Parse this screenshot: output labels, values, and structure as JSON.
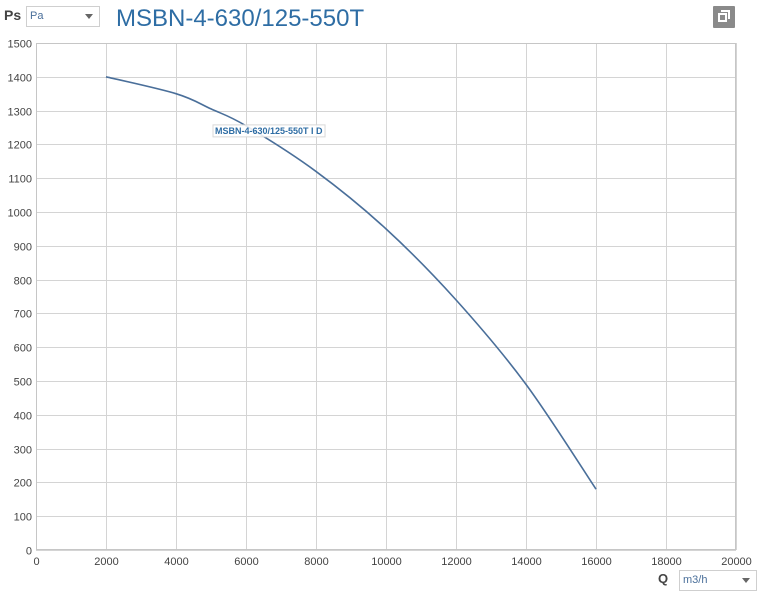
{
  "header": {
    "y_axis_symbol": "Ps",
    "title": "MSBN-4-630/125-550T"
  },
  "y_unit_select": {
    "value": "Pa"
  },
  "x_axis": {
    "symbol": "Q"
  },
  "x_unit_select": {
    "value": "m3/h"
  },
  "icons": {
    "copy": "copy-icon"
  },
  "colors": {
    "title": "#2e6da4",
    "curve": "#4a6f9a",
    "grid": "#d4d4d4"
  },
  "chart_data": {
    "type": "line",
    "title": "MSBN-4-630/125-550T",
    "xlabel": "Q",
    "ylabel": "Ps",
    "xlim": [
      0,
      20000
    ],
    "ylim": [
      0,
      1500
    ],
    "x_ticks": [
      0,
      2000,
      4000,
      6000,
      8000,
      10000,
      12000,
      14000,
      16000,
      18000,
      20000
    ],
    "y_ticks": [
      0,
      100,
      200,
      300,
      400,
      500,
      600,
      700,
      800,
      900,
      1000,
      1100,
      1200,
      1300,
      1400,
      1500
    ],
    "grid": true,
    "series": [
      {
        "name": "MSBN-4-630/125-550T I D",
        "x": [
          2000,
          4000,
          5000,
          6000,
          8000,
          10000,
          12000,
          14000,
          16000
        ],
        "y": [
          1400,
          1350,
          1305,
          1255,
          1120,
          950,
          740,
          490,
          180
        ]
      }
    ]
  }
}
